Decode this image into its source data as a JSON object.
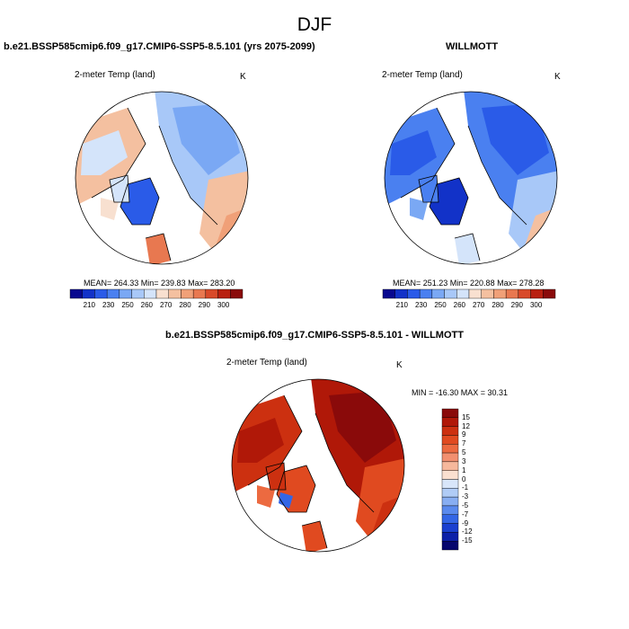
{
  "title": "DJF",
  "panels": [
    {
      "id": "model",
      "title": "b.e21.BSSP585cmip6.f09_g17.CMIP6-SSP5-8.5.101 (yrs 2075-2099)",
      "variable": "2-meter Temp (land)",
      "units": "K",
      "stats": "MEAN= 264.33  Min= 239.83  Max= 283.20",
      "colorbar_labels": [
        "210",
        "230",
        "250",
        "260",
        "270",
        "280",
        "290",
        "300"
      ]
    },
    {
      "id": "obs",
      "title": "WILLMOTT",
      "variable": "2-meter Temp (land)",
      "units": "K",
      "stats": "MEAN= 251.23  Min= 220.88  Max= 278.28",
      "colorbar_labels": [
        "210",
        "230",
        "250",
        "260",
        "270",
        "280",
        "290",
        "300"
      ]
    },
    {
      "id": "diff",
      "title": "b.e21.BSSP585cmip6.f09_g17.CMIP6-SSP5-8.5.101 - WILLMOTT",
      "variable": "2-meter Temp (land)",
      "units": "K",
      "stats": "MIN = -16.30 MAX =  30.31",
      "colorbar_labels": [
        "15",
        "12",
        "9",
        "7",
        "5",
        "3",
        "1",
        "0",
        "-1",
        "-3",
        "-5",
        "-7",
        "-9",
        "-12",
        "-15"
      ]
    }
  ],
  "colors": {
    "abs_scale": [
      "#08088f",
      "#1232c8",
      "#2a5be8",
      "#4a80f0",
      "#7aa8f4",
      "#a8c8f8",
      "#d4e4fa",
      "#f8e0d0",
      "#f4c0a0",
      "#f0a078",
      "#e87850",
      "#d84a2a",
      "#b82010",
      "#8a0a0a"
    ],
    "diff_scale": [
      "#8a0a0a",
      "#b01808",
      "#cc3010",
      "#e04a20",
      "#ec6a40",
      "#f29070",
      "#f6b89c",
      "#fae0d0",
      "#d8e6fa",
      "#b0ccf6",
      "#88aef2",
      "#5a8aee",
      "#3366e6",
      "#1a40d0",
      "#0c20a8",
      "#06066e"
    ],
    "ocean": "#ffffff",
    "coast": "#000000"
  }
}
